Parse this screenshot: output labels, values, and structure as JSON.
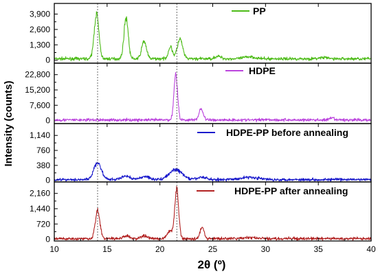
{
  "chart_data": {
    "type": "line",
    "xlabel": "2θ (º)",
    "ylabel": "Intensity (counts)",
    "xlim": [
      10,
      40
    ],
    "xticks": [
      "10",
      "15",
      "20",
      "25",
      "30",
      "35",
      "40"
    ],
    "reference_lines_x": [
      14.1,
      21.6
    ],
    "grid": false,
    "panels": [
      {
        "series_name": "PP",
        "color": "#4cbb17",
        "legend_position": "top-right",
        "ylim": [
          -250,
          4800
        ],
        "yticks": [
          "0",
          "1,300",
          "2,600",
          "3,900"
        ],
        "baseline": 120,
        "peaks": [
          [
            14.0,
            3800,
            0.22
          ],
          [
            16.8,
            3500,
            0.2
          ],
          [
            18.5,
            1500,
            0.22
          ],
          [
            21.0,
            1000,
            0.2
          ],
          [
            21.9,
            1650,
            0.25
          ],
          [
            25.5,
            200,
            0.3
          ],
          [
            28.5,
            180,
            0.5
          ],
          [
            35.5,
            100,
            0.4
          ]
        ]
      },
      {
        "series_name": "HDPE",
        "color": "#bb44dd",
        "legend_position": "top-center",
        "ylim": [
          -1500,
          28500
        ],
        "yticks": [
          "0",
          "7,600",
          "15,200",
          "22,800"
        ],
        "baseline": 300,
        "peaks": [
          [
            21.5,
            23000,
            0.17
          ],
          [
            23.9,
            5500,
            0.2
          ],
          [
            30.0,
            300,
            0.4
          ],
          [
            36.3,
            900,
            0.2
          ]
        ]
      },
      {
        "series_name": "HDPE-PP before annealing",
        "color": "#1a1acc",
        "legend_position": "top-right",
        "ylim": [
          -40,
          1440
        ],
        "yticks": [
          "0",
          "380",
          "760",
          "1,140"
        ],
        "baseline": 20,
        "peaks": [
          [
            14.1,
            430,
            0.35
          ],
          [
            16.8,
            90,
            0.4
          ],
          [
            18.6,
            80,
            0.4
          ],
          [
            21.5,
            250,
            0.6
          ],
          [
            24.0,
            60,
            0.4
          ],
          [
            28.5,
            60,
            0.8
          ]
        ]
      },
      {
        "series_name": "HDPE-PP after annealing",
        "color": "#b22222",
        "legend_position": "top-right",
        "ylim": [
          -80,
          2700
        ],
        "yticks": [
          "0",
          "720",
          "1,440",
          "2,160"
        ],
        "baseline": 30,
        "peaks": [
          [
            14.1,
            1300,
            0.22
          ],
          [
            16.8,
            120,
            0.3
          ],
          [
            18.5,
            130,
            0.3
          ],
          [
            21.0,
            350,
            0.3
          ],
          [
            21.6,
            2300,
            0.18
          ],
          [
            24.0,
            550,
            0.18
          ],
          [
            28.5,
            50,
            0.6
          ]
        ]
      }
    ]
  }
}
